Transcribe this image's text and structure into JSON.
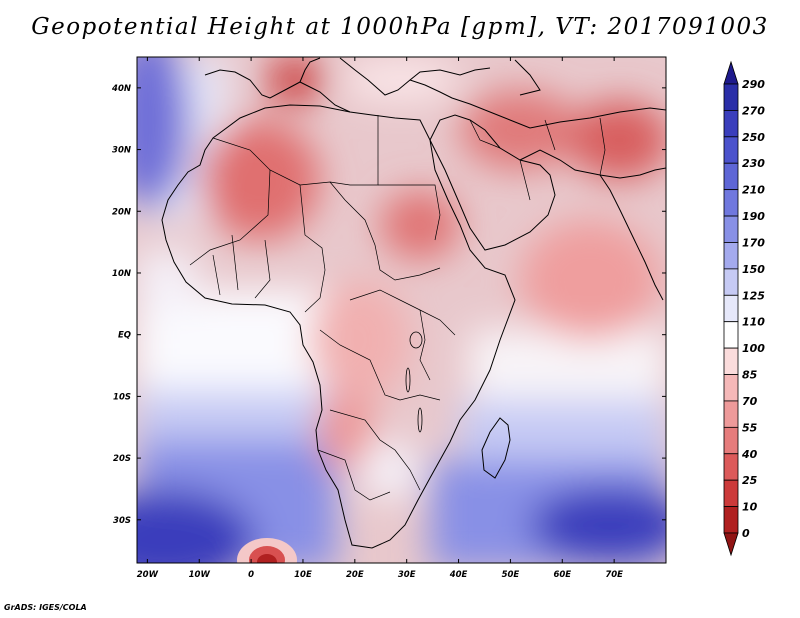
{
  "title": "Geopotential Height at 1000hPa [gpm], VT: 2017091003",
  "footer": "GrADS: IGES/COLA",
  "map": {
    "region": "Africa, Arabia and the Indian subcontinent",
    "projection": "latlon",
    "lon_range": [
      -22,
      80
    ],
    "lat_range": [
      -37,
      45
    ],
    "x_ticks": [
      "20W",
      "10W",
      "0",
      "10E",
      "20E",
      "30E",
      "40E",
      "50E",
      "60E",
      "70E"
    ],
    "x_tick_values": [
      -20,
      -10,
      0,
      10,
      20,
      30,
      40,
      50,
      60,
      70
    ],
    "y_ticks": [
      "40N",
      "30N",
      "20N",
      "10N",
      "EQ",
      "10S",
      "20S",
      "30S"
    ],
    "y_tick_values": [
      40,
      30,
      20,
      10,
      0,
      -10,
      -20,
      -30
    ],
    "features": [
      "country borders",
      "coastlines",
      "shaded geopotential height field"
    ]
  },
  "colorbar": {
    "labels": [
      "290",
      "270",
      "250",
      "230",
      "210",
      "190",
      "170",
      "150",
      "125",
      "110",
      "100",
      "85",
      "70",
      "55",
      "40",
      "25",
      "10",
      "0"
    ],
    "colors": [
      "#1e1a8c",
      "#2a2ea8",
      "#3a3ebc",
      "#4b52cc",
      "#5e66d6",
      "#7078de",
      "#8890e6",
      "#a4aaee",
      "#c6caf4",
      "#e6e8fa",
      "#ffffff",
      "#fbdcdc",
      "#f5b8b8",
      "#ee9a9a",
      "#e67c7c",
      "#dc5a5a",
      "#cc3a3a",
      "#b02020",
      "#901414"
    ]
  }
}
